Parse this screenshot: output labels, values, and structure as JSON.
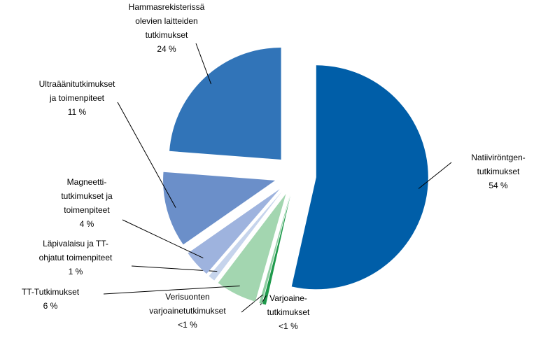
{
  "chart_data": {
    "type": "pie",
    "categories": [
      "Natiiviröntgen-\ntutkimukset",
      "Varjoaine-\ntutkimukset",
      "Verisuonten\nvarjoainetutkimukset",
      "TT-Tutkimukset",
      "Läpivalaisu ja TT-\nohjatut toimenpiteet",
      "Magneetti-\ntutkimukset ja\ntoimenpiteet",
      "Ultraäänitutkimukset\nja toimenpiteet",
      "Hammasrekisterissä\nolevien laitteiden\ntutkimukset"
    ],
    "values": [
      54,
      0.5,
      0.4,
      6,
      1,
      4,
      11,
      24
    ],
    "value_labels": [
      "54 %",
      "<1 %",
      "<1 %",
      "6 %",
      "1 %",
      "4 %",
      "11 %",
      "24 %"
    ],
    "colors": [
      "#005ea8",
      "#1f9a4c",
      "#8fcea2",
      "#a3d6b0",
      "#c6d4ec",
      "#9eb3de",
      "#6b8fc9",
      "#3174b8"
    ]
  }
}
